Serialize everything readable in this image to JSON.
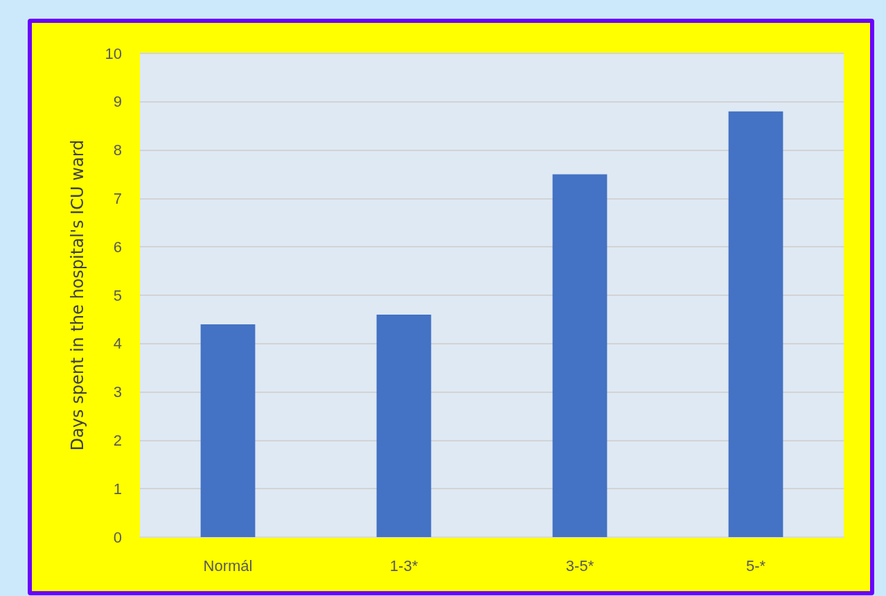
{
  "chart_data": {
    "type": "bar",
    "ylabel": "Days spent in the hospital's ICU ward",
    "categories": [
      "Normál",
      "1-3*",
      "3-5*",
      "5-*"
    ],
    "values": [
      4.4,
      4.6,
      7.5,
      8.8
    ],
    "color": "#4472c4",
    "ylim": [
      0,
      10
    ],
    "yticks": [
      0,
      1,
      2,
      3,
      4,
      5,
      6,
      7,
      8,
      9,
      10
    ],
    "grid": "y"
  }
}
